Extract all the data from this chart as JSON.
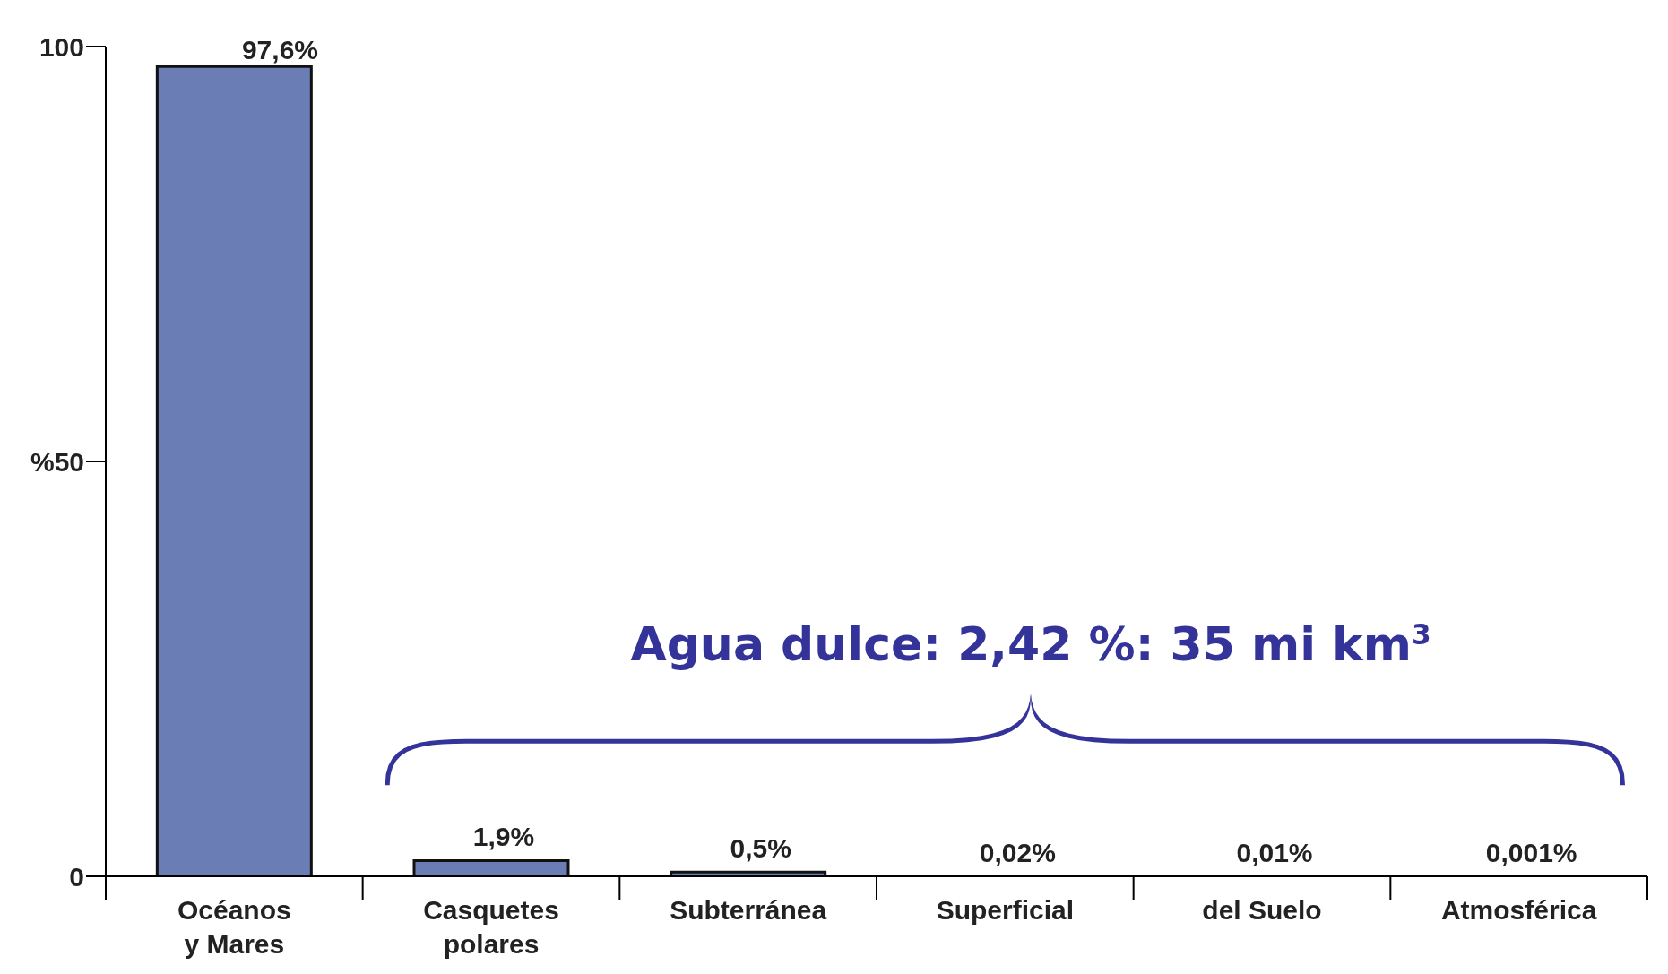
{
  "chart_data": {
    "type": "bar",
    "categories": [
      "Océanos\ny Mares",
      "Casquetes\npolares",
      "Subterránea",
      "Superficial",
      "del Suelo",
      "Atmosférica"
    ],
    "values": [
      97.6,
      1.9,
      0.5,
      0.02,
      0.01,
      0.001
    ],
    "value_labels": [
      "97,6%",
      "1,9%",
      "0,5%",
      "0,02%",
      "0,01%",
      "0,001%"
    ],
    "color": "#6a7db5",
    "ylim": [
      0,
      100
    ],
    "yticks": [
      0,
      {
        "value": 50,
        "label": "%50"
      },
      100
    ],
    "annotations": [
      "Agua dulce: 2,42 %: 35 mi km$^{3}$"
    ]
  }
}
